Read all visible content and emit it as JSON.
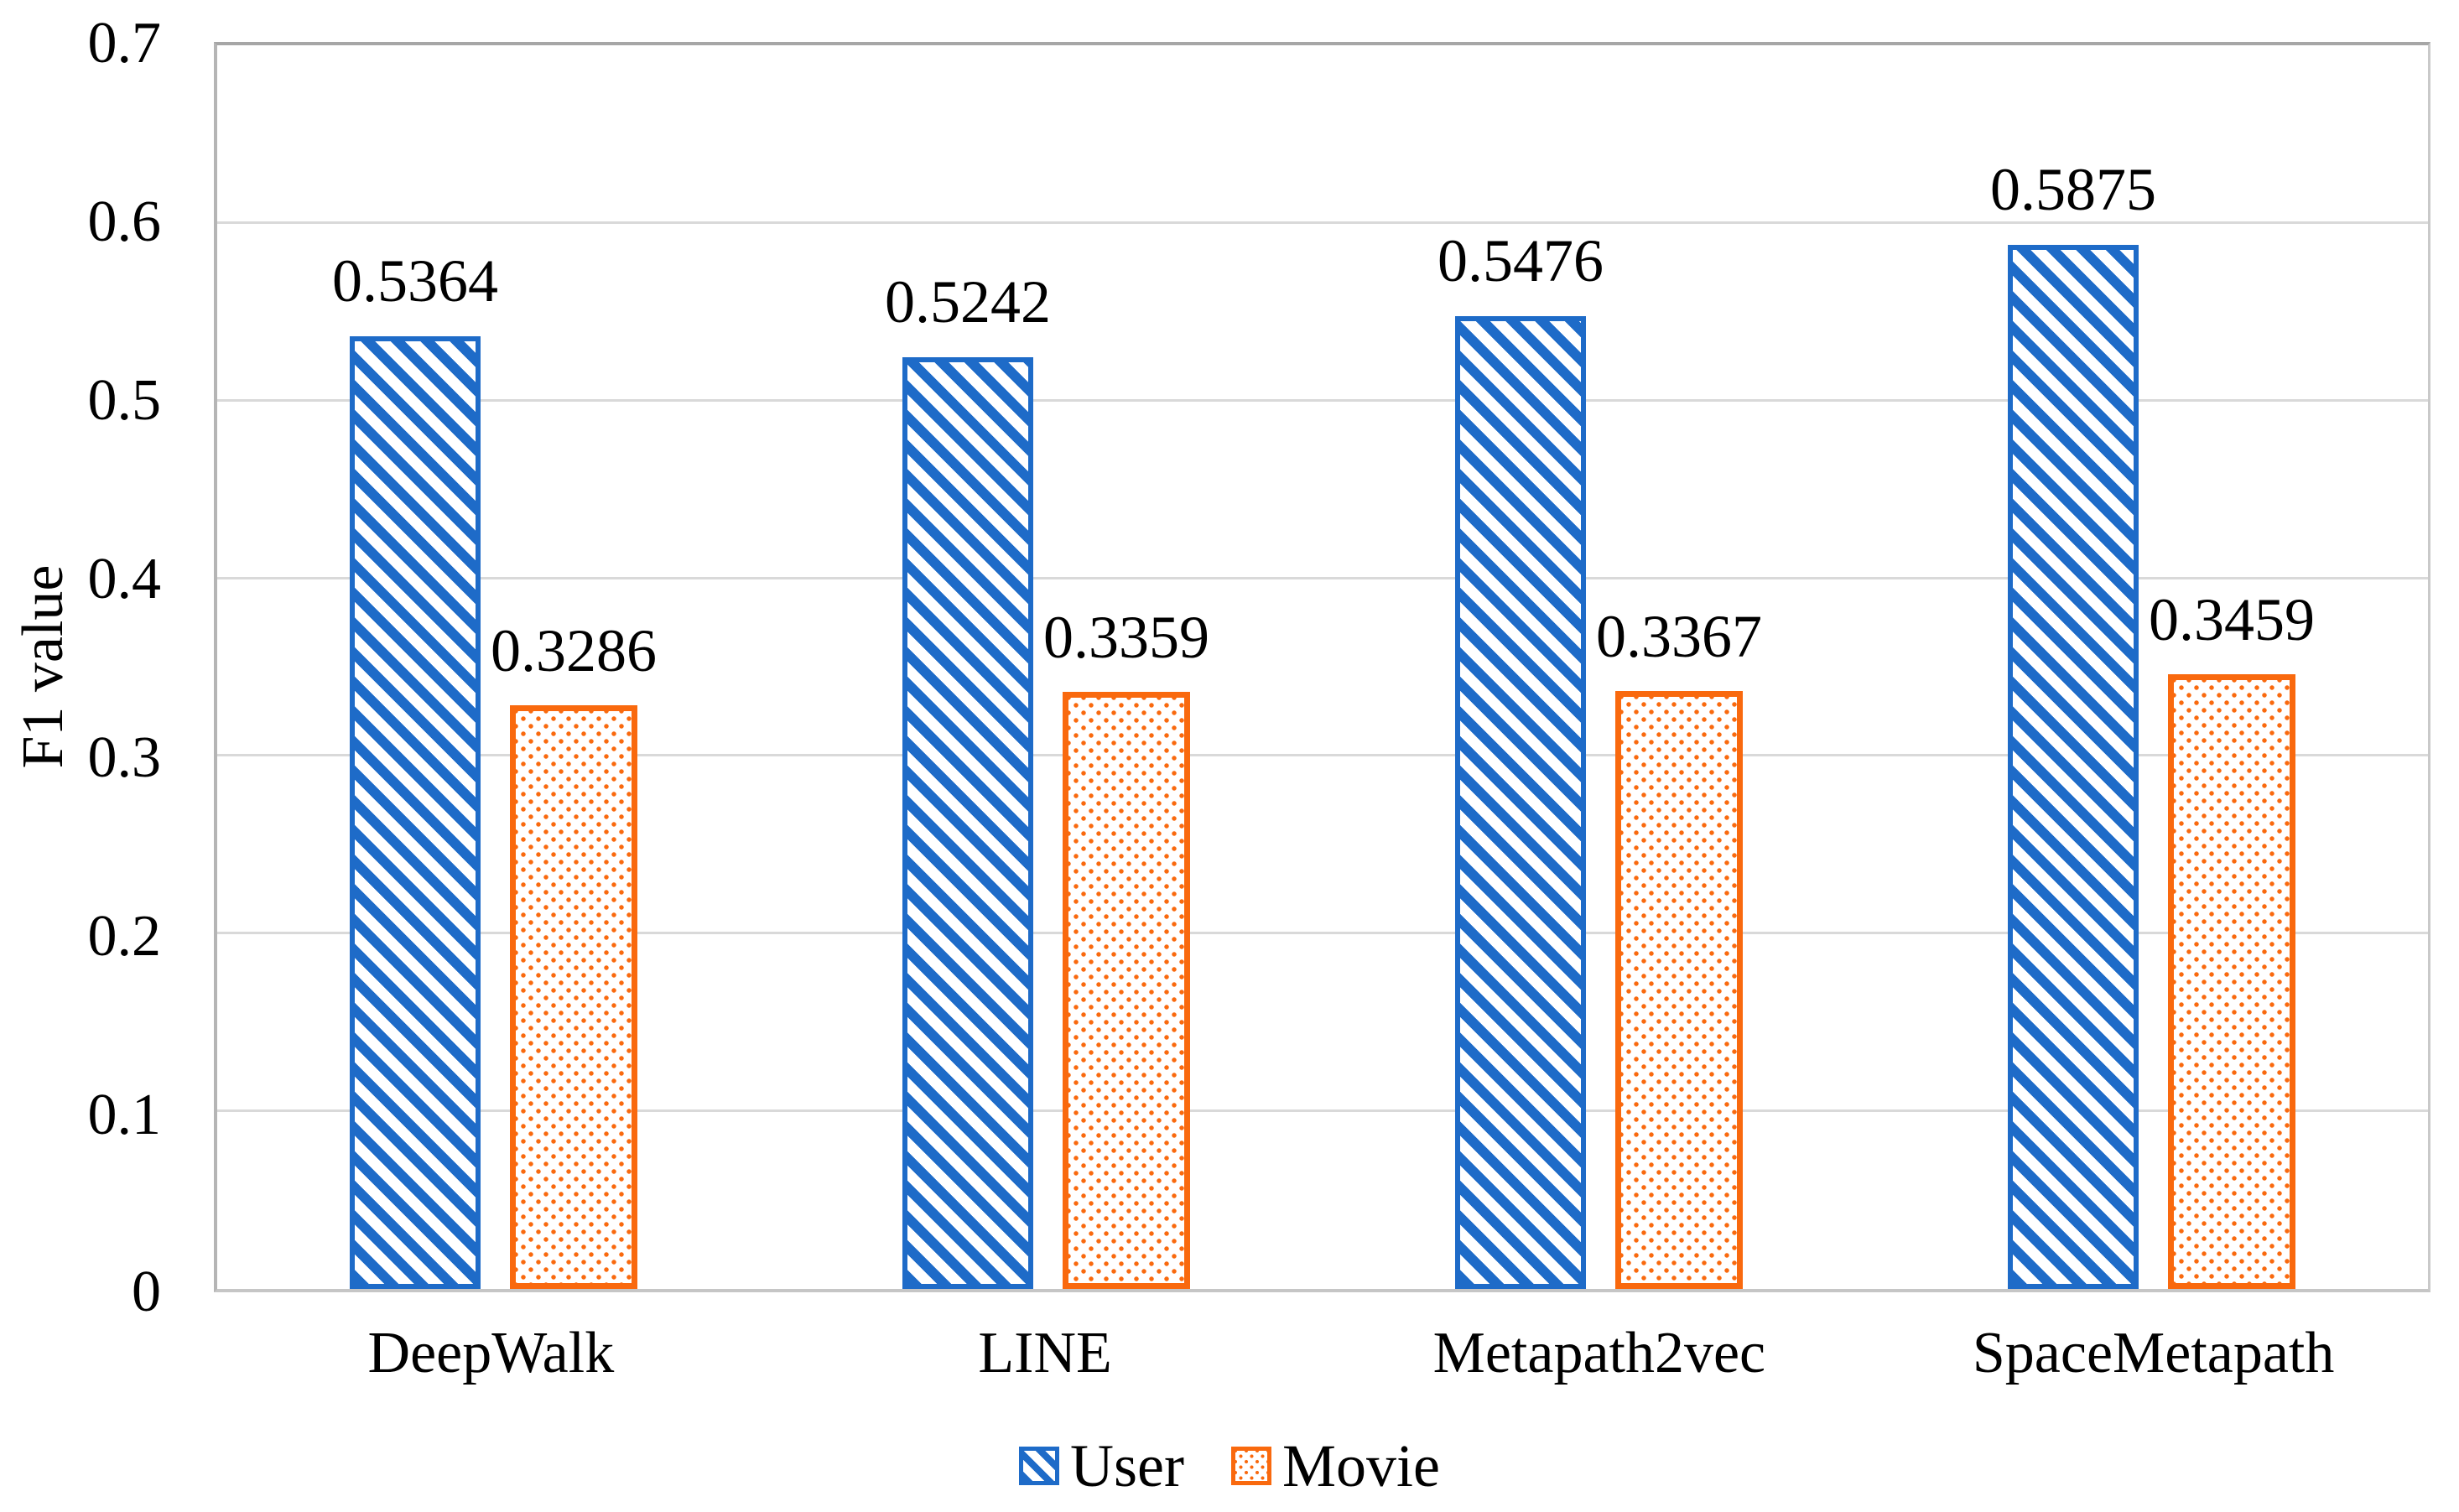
{
  "chart_data": {
    "type": "bar",
    "title": "",
    "xlabel": "",
    "ylabel": "F1 value",
    "ylim": [
      0,
      0.7
    ],
    "ytick_step": 0.1,
    "yticks": [
      "0.7",
      "0.6",
      "0.5",
      "0.4",
      "0.3",
      "0.2",
      "0.1",
      "0"
    ],
    "grid": true,
    "legend_position": "bottom",
    "categories": [
      "DeepWalk",
      "LINE",
      "Metapath2vec",
      "SpaceMetapath"
    ],
    "series": [
      {
        "name": "User",
        "pattern": "diagonal-hatch",
        "color": "#1e6bc8",
        "values": [
          0.5364,
          0.5242,
          0.5476,
          0.5875
        ],
        "labels": [
          "0.5364",
          "0.5242",
          "0.5476",
          "0.5875"
        ]
      },
      {
        "name": "Movie",
        "pattern": "dots",
        "color": "#f9690e",
        "values": [
          0.3286,
          0.3359,
          0.3367,
          0.3459
        ],
        "labels": [
          "0.3286",
          "0.3359",
          "0.3367",
          "0.3459"
        ]
      }
    ]
  },
  "colors": {
    "user_blue": "#1e6bc8",
    "movie_orange": "#f9690e",
    "gridline": "#d9d9d9",
    "axis": "#a6a6a6",
    "text": "#000000",
    "background": "#ffffff"
  }
}
